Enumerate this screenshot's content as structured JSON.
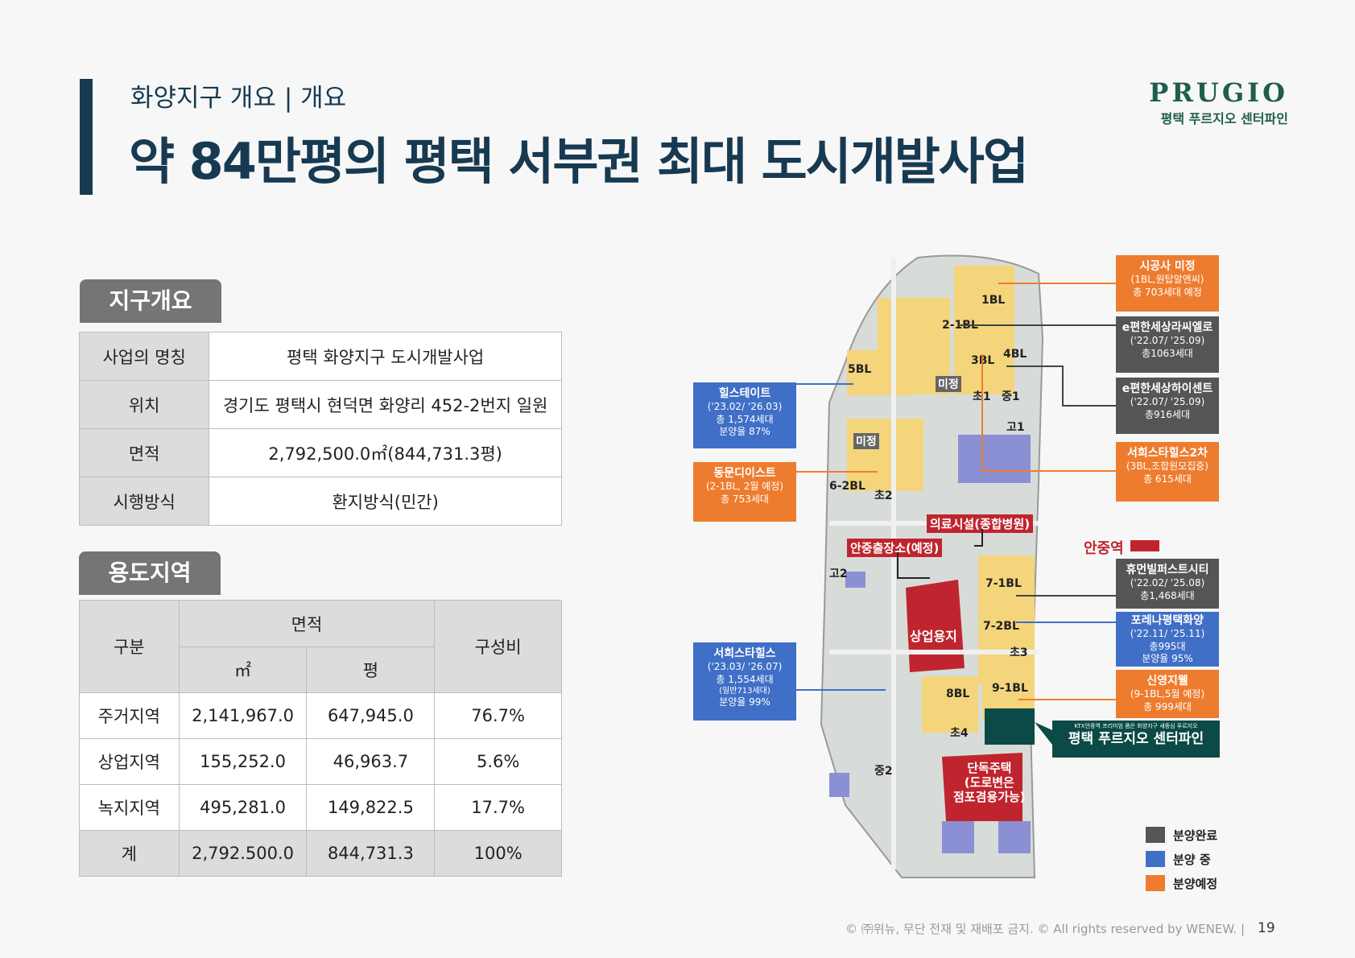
{
  "header": {
    "subtitle": "화양지구 개요 | 개요",
    "title": "약 84만평의 평택 서부권 최대 도시개발사업",
    "logo_word": "PRUGIO",
    "logo_sub": "평택 푸르지오 센터파인"
  },
  "overview": {
    "heading": "지구개요",
    "rows": [
      {
        "label": "사업의 명칭",
        "value": "평택 화양지구 도시개발사업"
      },
      {
        "label": "위치",
        "value": "경기도 평택시 현덕면 화양리 452-2번지 일원"
      },
      {
        "label": "면적",
        "value": "2,792,500.0㎡(844,731.3평)"
      },
      {
        "label": "시행방식",
        "value": "환지방식(민간)"
      }
    ]
  },
  "zoning": {
    "heading": "용도지역",
    "col_category": "구분",
    "col_area": "면적",
    "col_sqm": "㎡",
    "col_pyeong": "평",
    "col_ratio": "구성비",
    "rows": [
      {
        "label": "주거지역",
        "sqm": "2,141,967.0",
        "pyeong": "647,945.0",
        "ratio": "76.7%"
      },
      {
        "label": "상업지역",
        "sqm": "155,252.0",
        "pyeong": "46,963.7",
        "ratio": "5.6%"
      },
      {
        "label": "녹지지역",
        "sqm": "495,281.0",
        "pyeong": "149,822.5",
        "ratio": "17.7%"
      }
    ],
    "total": {
      "label": "계",
      "sqm": "2,792.500.0",
      "pyeong": "844,731.3",
      "ratio": "100%"
    }
  },
  "map": {
    "parcels": [
      "1BL",
      "2-1BL",
      "3BL",
      "4BL",
      "5BL",
      "미정",
      "미정",
      "6-2BL",
      "7-1BL",
      "7-2BL",
      "8BL",
      "9-1BL",
      "초1",
      "중1",
      "고1",
      "초2",
      "고2",
      "초3",
      "초4",
      "중2"
    ],
    "red_labels": {
      "hospital": "의료시설(종합병원)",
      "office": "안중출장소(예정)",
      "station": "안중역"
    },
    "commercial": "상업용지",
    "detached": [
      "단독주택",
      "(도로변은",
      "점포겸용가능)"
    ],
    "callouts": {
      "c1": {
        "title": "시공사 미정",
        "l1": "(1BL,원탑알엔씨)",
        "l2": "총 703세대 예정"
      },
      "c2": {
        "title": "e편한세상라씨엘로",
        "l1": "('22.07/ '25.09)",
        "l2": "총1063세대"
      },
      "c3": {
        "title": "e편한세상하이센트",
        "l1": "('22.07/ '25.09)",
        "l2": "총916세대"
      },
      "c4": {
        "title": "서희스타힐스2차",
        "l1": "(3BL,조합원모집중)",
        "l2": "총 615세대"
      },
      "c5": {
        "title": "휴먼빌퍼스트시티",
        "l1": "('22.02/ '25.08)",
        "l2": "총1,468세대"
      },
      "c6": {
        "title": "포레나평택화양",
        "l1": "('22.11/ '25.11)",
        "l2": "총995대",
        "l3": "분양율 95%"
      },
      "c7": {
        "title": "신영지웰",
        "l1": "(9-1BL,5월 예정)",
        "l2": "총 999세대"
      },
      "c8": {
        "title": "힐스테이트",
        "l1": "('23.02/ '26.03)",
        "l2": "총 1,574세대",
        "l3": "분양율 87%"
      },
      "c9": {
        "title": "동문디이스트",
        "l1": "(2-1BL, 2월 예정)",
        "l2": "총 753세대"
      },
      "c10": {
        "title": "서희스타힐스",
        "l1": "('23.03/ '26.07)",
        "l2": "총 1,554세대",
        "l3": "(일반713세대)",
        "l4": "분양율 99%"
      },
      "c11": {
        "small": "KTX안중역 프리미엄 품은 화양지구 새중심 푸르지오",
        "title": "평택 푸르지오 센터파인"
      }
    }
  },
  "legend": [
    {
      "label": "분양완료",
      "color": "#555555"
    },
    {
      "label": "분양 중",
      "color": "#3f6fc6"
    },
    {
      "label": "분양예정",
      "color": "#ee7c2e"
    }
  ],
  "footer": {
    "copyright": "© ㈜위뉴, 무단 전재 및 재배포 금지. © All rights reserved by WENEW.  |",
    "page": "19"
  }
}
